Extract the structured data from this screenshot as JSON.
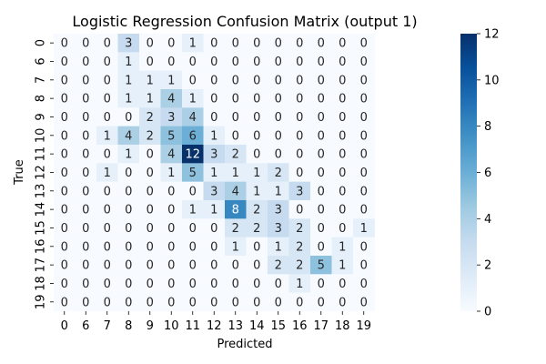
{
  "chart_data": {
    "type": "heatmap",
    "title": "Logistic Regression Confusion Matrix (output 1)",
    "xlabel": "Predicted",
    "ylabel": "True",
    "x_categories": [
      "0",
      "6",
      "7",
      "8",
      "9",
      "10",
      "11",
      "12",
      "13",
      "14",
      "15",
      "16",
      "17",
      "18",
      "19"
    ],
    "y_categories": [
      "0",
      "6",
      "7",
      "8",
      "9",
      "10",
      "11",
      "12",
      "13",
      "14",
      "15",
      "16",
      "17",
      "18",
      "19"
    ],
    "values": [
      [
        0,
        0,
        0,
        3,
        0,
        0,
        1,
        0,
        0,
        0,
        0,
        0,
        0,
        0,
        0
      ],
      [
        0,
        0,
        0,
        1,
        0,
        0,
        0,
        0,
        0,
        0,
        0,
        0,
        0,
        0,
        0
      ],
      [
        0,
        0,
        0,
        1,
        1,
        1,
        0,
        0,
        0,
        0,
        0,
        0,
        0,
        0,
        0
      ],
      [
        0,
        0,
        0,
        1,
        1,
        4,
        1,
        0,
        0,
        0,
        0,
        0,
        0,
        0,
        0
      ],
      [
        0,
        0,
        0,
        0,
        2,
        3,
        4,
        0,
        0,
        0,
        0,
        0,
        0,
        0,
        0
      ],
      [
        0,
        0,
        1,
        4,
        2,
        5,
        6,
        1,
        0,
        0,
        0,
        0,
        0,
        0,
        0
      ],
      [
        0,
        0,
        0,
        1,
        0,
        4,
        12,
        3,
        2,
        0,
        0,
        0,
        0,
        0,
        0
      ],
      [
        0,
        0,
        1,
        0,
        0,
        1,
        5,
        1,
        1,
        1,
        2,
        0,
        0,
        0,
        0
      ],
      [
        0,
        0,
        0,
        0,
        0,
        0,
        0,
        3,
        4,
        1,
        1,
        3,
        0,
        0,
        0
      ],
      [
        0,
        0,
        0,
        0,
        0,
        0,
        1,
        1,
        8,
        2,
        3,
        0,
        0,
        0,
        0
      ],
      [
        0,
        0,
        0,
        0,
        0,
        0,
        0,
        0,
        2,
        2,
        3,
        2,
        0,
        0,
        1
      ],
      [
        0,
        0,
        0,
        0,
        0,
        0,
        0,
        0,
        1,
        0,
        1,
        2,
        0,
        1,
        0
      ],
      [
        0,
        0,
        0,
        0,
        0,
        0,
        0,
        0,
        0,
        0,
        2,
        2,
        5,
        1,
        0
      ],
      [
        0,
        0,
        0,
        0,
        0,
        0,
        0,
        0,
        0,
        0,
        0,
        1,
        0,
        0,
        0
      ],
      [
        0,
        0,
        0,
        0,
        0,
        0,
        0,
        0,
        0,
        0,
        0,
        0,
        0,
        0,
        0
      ]
    ],
    "colorbar": {
      "min": 0,
      "max": 12,
      "ticks": [
        "0",
        "2",
        "4",
        "6",
        "8",
        "10",
        "12"
      ]
    },
    "colormap": "Blues",
    "colormap_stops": [
      "#f7fbff",
      "#deebf7",
      "#c6dbef",
      "#9ecae1",
      "#6baed6",
      "#4292c6",
      "#2171b5",
      "#08519c",
      "#08306b"
    ],
    "grid": false
  }
}
